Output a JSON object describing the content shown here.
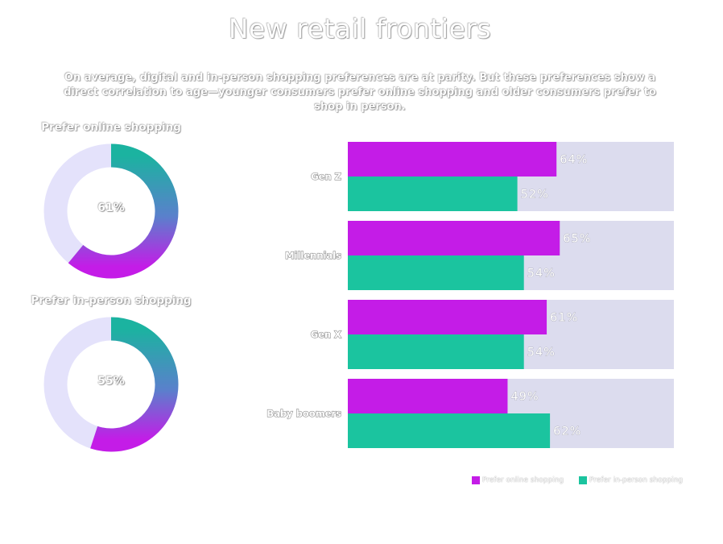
{
  "title": "New retail frontiers",
  "subtitle": "On average, digital and in-person shopping preferences are at parity. But these preferences show a direct correlation to age—younger consumers prefer online shopping and older consumers prefer to shop in person.",
  "colors": {
    "online": "#c41ce7",
    "in_person": "#1bc49f",
    "track": "#dcdcee",
    "donut_track": "#e4e2fb"
  },
  "chart_data": [
    {
      "type": "pie",
      "title": "Prefer online shopping",
      "center_label": "61%",
      "values": [
        61,
        39
      ],
      "categories": [
        "Prefer online shopping",
        ""
      ]
    },
    {
      "type": "pie",
      "title": "Prefer in-person shopping",
      "center_label": "55%",
      "values": [
        55,
        45
      ],
      "categories": [
        "Prefer in-person shopping",
        ""
      ]
    },
    {
      "type": "bar",
      "orientation": "horizontal",
      "categories": [
        "Gen Z",
        "Millennials",
        "Gen X",
        "Baby boomers"
      ],
      "series": [
        {
          "name": "Prefer online shopping",
          "values": [
            64,
            65,
            61,
            49
          ],
          "labels": [
            "64%",
            "65%",
            "61%",
            "49%"
          ]
        },
        {
          "name": "Prefer in-person shopping",
          "values": [
            52,
            54,
            54,
            62
          ],
          "labels": [
            "52%",
            "54%",
            "54%",
            "62%"
          ]
        }
      ],
      "xlim": [
        0,
        100
      ],
      "legend": "bottom-right"
    }
  ]
}
